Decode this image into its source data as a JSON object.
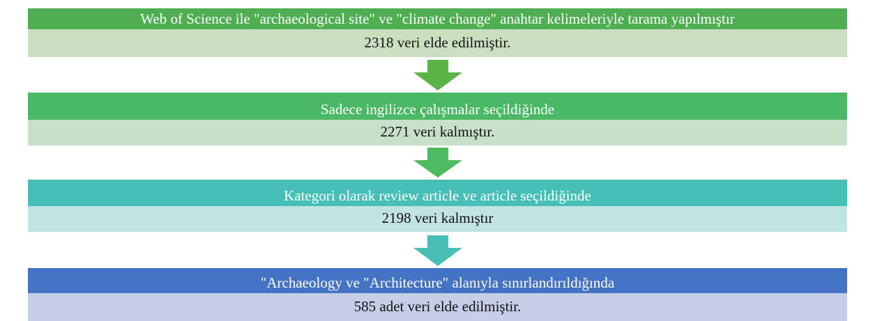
{
  "steps": [
    {
      "title": "Web of Science ile \"archaeological site\" ve \"climate change\" anahtar kelimeleriyle tarama yapılmıştır",
      "result": "2318 veri elde edilmiştir."
    },
    {
      "title": "Sadece ingilizce çalışmalar seçildiğinde",
      "result": "2271 veri kalmıştır."
    },
    {
      "title": "Kategori olarak review article ve article seçildiğinde",
      "result": "2198 veri kalmıştır"
    },
    {
      "title": "\"Archaeology ve \"Architecture\" alanıyla sınırlandırıldığında",
      "result": "585 adet veri elde edilmiştir."
    }
  ]
}
